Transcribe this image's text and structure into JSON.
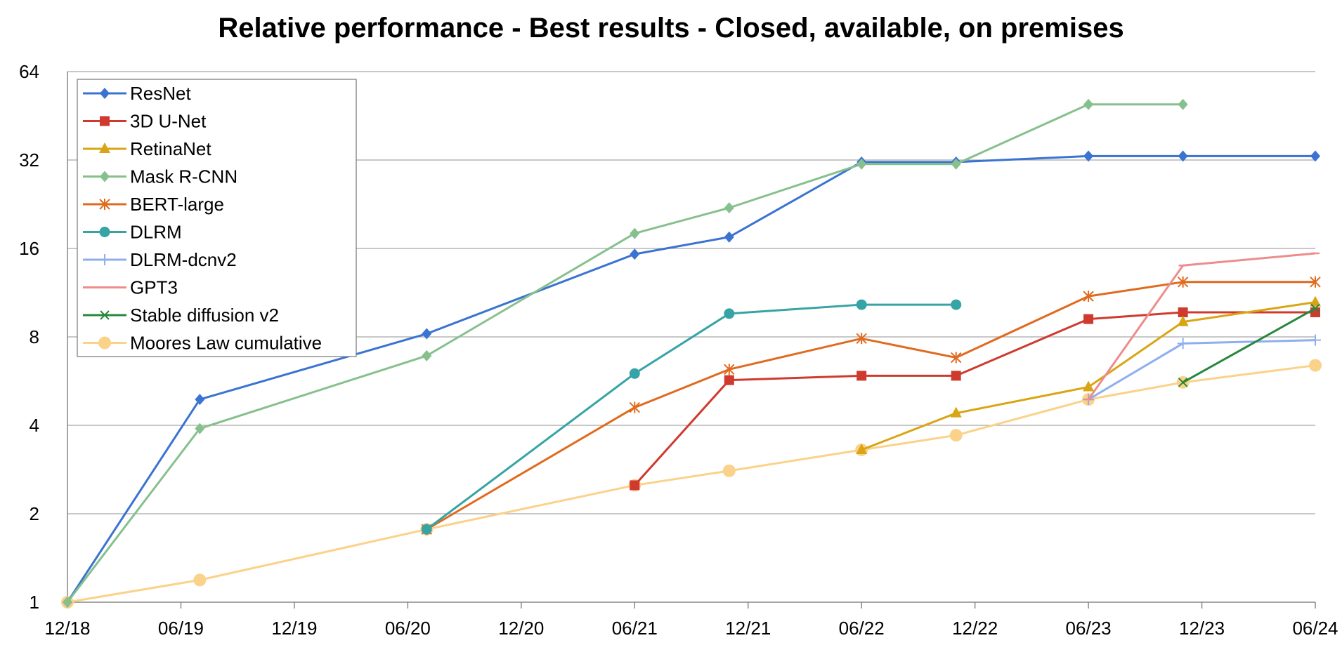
{
  "chart_data": {
    "type": "line",
    "title": "Relative performance - Best results - Closed, available, on premises",
    "xlabel": "",
    "ylabel": "",
    "y_scale": "log2",
    "ylim": [
      1,
      64
    ],
    "y_ticks": [
      "1",
      "2",
      "4",
      "8",
      "16",
      "32",
      "64"
    ],
    "x_ticks": [
      "12/18",
      "06/19",
      "12/19",
      "06/20",
      "12/20",
      "06/21",
      "12/21",
      "06/22",
      "12/22",
      "06/23",
      "12/23",
      "06/24"
    ],
    "grid": "horizontal",
    "legend_position": "top-left",
    "series": [
      {
        "name": "ResNet",
        "color": "#3A73D1",
        "marker": "diamond",
        "points": [
          [
            "12/18",
            1.0
          ],
          [
            "07/19",
            4.9
          ],
          [
            "07/20",
            8.2
          ],
          [
            "06/21",
            15.3
          ],
          [
            "11/21",
            17.5
          ],
          [
            "06/22",
            31.5
          ],
          [
            "11/22",
            31.5
          ],
          [
            "06/23",
            33.0
          ],
          [
            "11/23",
            33.0
          ],
          [
            "06/24",
            33.0
          ]
        ]
      },
      {
        "name": "3D U-Net",
        "color": "#D03A2E",
        "marker": "square",
        "points": [
          [
            "06/21",
            2.5
          ],
          [
            "11/21",
            5.7
          ],
          [
            "06/22",
            5.9
          ],
          [
            "11/22",
            5.9
          ],
          [
            "06/23",
            9.2
          ],
          [
            "11/23",
            9.7
          ],
          [
            "06/24",
            9.7
          ]
        ]
      },
      {
        "name": "RetinaNet",
        "color": "#D9A514",
        "marker": "triangle",
        "points": [
          [
            "06/22",
            3.3
          ],
          [
            "11/22",
            4.4
          ],
          [
            "06/23",
            5.4
          ],
          [
            "11/23",
            9.0
          ],
          [
            "06/24",
            10.5
          ]
        ]
      },
      {
        "name": "Mask R-CNN",
        "color": "#86C08C",
        "marker": "diamond",
        "points": [
          [
            "12/18",
            1.0
          ],
          [
            "07/19",
            3.9
          ],
          [
            "07/20",
            6.9
          ],
          [
            "06/21",
            18.0
          ],
          [
            "11/21",
            22.0
          ],
          [
            "06/22",
            31.0
          ],
          [
            "11/22",
            31.0
          ],
          [
            "06/23",
            49.5
          ],
          [
            "11/23",
            49.5
          ]
        ]
      },
      {
        "name": "BERT-large",
        "color": "#E06A1E",
        "marker": "asterisk",
        "points": [
          [
            "07/20",
            1.77
          ],
          [
            "06/21",
            4.6
          ],
          [
            "11/21",
            6.2
          ],
          [
            "06/22",
            7.9
          ],
          [
            "11/22",
            6.8
          ],
          [
            "06/23",
            11.0
          ],
          [
            "11/23",
            12.3
          ],
          [
            "06/24",
            12.3
          ]
        ]
      },
      {
        "name": "DLRM",
        "color": "#36A3A5",
        "marker": "circle",
        "points": [
          [
            "07/20",
            1.77
          ],
          [
            "06/21",
            6.0
          ],
          [
            "11/21",
            9.6
          ],
          [
            "06/22",
            10.3
          ],
          [
            "11/22",
            10.3
          ]
        ]
      },
      {
        "name": "DLRM-dcnv2",
        "color": "#8FAEEE",
        "marker": "plus",
        "points": [
          [
            "06/23",
            4.9
          ],
          [
            "11/23",
            7.6
          ],
          [
            "06/24",
            7.8
          ]
        ]
      },
      {
        "name": "GPT3",
        "color": "#EE8C8C",
        "marker": "dash",
        "points": [
          [
            "06/23",
            4.9
          ],
          [
            "11/23",
            14.0
          ],
          [
            "06/24",
            15.4
          ]
        ]
      },
      {
        "name": "Stable diffusion v2",
        "color": "#27873C",
        "marker": "x",
        "points": [
          [
            "11/23",
            5.6
          ],
          [
            "06/24",
            10.0
          ]
        ]
      },
      {
        "name": "Moores Law cumulative",
        "color": "#FAD28A",
        "marker": "circle-large",
        "points": [
          [
            "12/18",
            1.0
          ],
          [
            "07/19",
            1.19
          ],
          [
            "07/20",
            1.77
          ],
          [
            "06/21",
            2.5
          ],
          [
            "11/21",
            2.8
          ],
          [
            "06/22",
            3.3
          ],
          [
            "11/22",
            3.7
          ],
          [
            "06/23",
            4.9
          ],
          [
            "11/23",
            5.6
          ],
          [
            "06/24",
            6.4
          ]
        ]
      }
    ]
  }
}
